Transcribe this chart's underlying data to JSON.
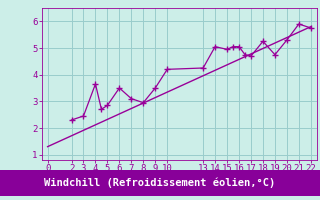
{
  "x_data": [
    2,
    3,
    4,
    4.5,
    5,
    6,
    7,
    8,
    9,
    10,
    13,
    14,
    15,
    15.5,
    16,
    16.5,
    17,
    18,
    19,
    20,
    21,
    22
  ],
  "y_data": [
    2.3,
    2.45,
    3.65,
    2.7,
    2.85,
    3.5,
    3.1,
    2.95,
    3.5,
    4.2,
    4.25,
    5.05,
    4.95,
    5.05,
    5.05,
    4.75,
    4.7,
    5.25,
    4.75,
    5.3,
    5.9,
    5.75
  ],
  "trend_x": [
    0,
    22
  ],
  "trend_y": [
    1.3,
    5.8
  ],
  "xlim": [
    -0.5,
    22.5
  ],
  "ylim": [
    0.8,
    6.5
  ],
  "xticks": [
    0,
    2,
    3,
    4,
    5,
    6,
    7,
    8,
    9,
    10,
    13,
    14,
    15,
    16,
    17,
    18,
    19,
    20,
    21,
    22
  ],
  "yticks": [
    1,
    2,
    3,
    4,
    5,
    6
  ],
  "xlabel": "Windchill (Refroidissement éolien,°C)",
  "line_color": "#990099",
  "bg_color": "#cceee8",
  "grid_color": "#99cccc",
  "xlabel_bg": "#880099",
  "xlabel_text_color": "#ffffff",
  "tick_fontsize": 6.5,
  "xlabel_fontsize": 7.5
}
